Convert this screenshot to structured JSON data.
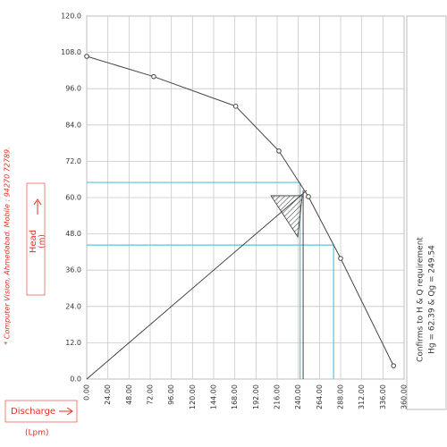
{
  "chart_data": {
    "type": "line",
    "y_label": "Head",
    "y_unit": "(m)",
    "x_label": "Discharge",
    "x_unit": "(Lpm)",
    "credit": "* Computer Vision, Ahmedabad. Mobile : 94270 72789.",
    "note_title": "Confirms to H & Q requirement",
    "note_value": "Hg = 62.39 & Qg = 249.54",
    "duty_point": {
      "x": 249.54,
      "y": 62.39
    },
    "x": [
      0,
      76,
      169,
      218,
      251.5,
      288,
      348
    ],
    "values": [
      106.7,
      100,
      90.2,
      75.4,
      60.3,
      39.9,
      4.4
    ],
    "color": "#444444",
    "reference_lines": [
      {
        "x": 242,
        "y": 65
      },
      {
        "x": 280,
        "y": 44.3
      }
    ],
    "reference_color": "#5bc0de",
    "xlim": [
      0,
      360
    ],
    "ylim": [
      0,
      120
    ],
    "xticks": [
      {
        "value": 0,
        "label": "0.00"
      },
      {
        "value": 24,
        "label": "24.00"
      },
      {
        "value": 48,
        "label": "48.00"
      },
      {
        "value": 72,
        "label": "72.00"
      },
      {
        "value": 96,
        "label": "96.00"
      },
      {
        "value": 120,
        "label": "120.00"
      },
      {
        "value": 144,
        "label": "144.00"
      },
      {
        "value": 168,
        "label": "168.00"
      },
      {
        "value": 192,
        "label": "192.00"
      },
      {
        "value": 216,
        "label": "216.00"
      },
      {
        "value": 240,
        "label": "240.00"
      },
      {
        "value": 264,
        "label": "264.00"
      },
      {
        "value": 288,
        "label": "288.00"
      },
      {
        "value": 312,
        "label": "312.00"
      },
      {
        "value": 336,
        "label": "336.00"
      },
      {
        "value": 360,
        "label": "360.00"
      }
    ],
    "yticks": [
      {
        "value": 0,
        "label": "0.0"
      },
      {
        "value": 12,
        "label": "12.0"
      },
      {
        "value": 24,
        "label": "24.0"
      },
      {
        "value": 36,
        "label": "36.0"
      },
      {
        "value": 48,
        "label": "48.0"
      },
      {
        "value": 60,
        "label": "60.0"
      },
      {
        "value": 72,
        "label": "72.0"
      },
      {
        "value": 84,
        "label": "84.0"
      },
      {
        "value": 96,
        "label": "96.0"
      },
      {
        "value": 108,
        "label": "108.0"
      },
      {
        "value": 120,
        "label": "120.0"
      }
    ],
    "grid": true
  }
}
